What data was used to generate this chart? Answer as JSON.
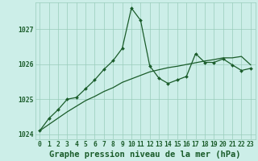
{
  "title": "Graphe pression niveau de la mer (hPa)",
  "background_color": "#cceee8",
  "grid_color": "#99ccbb",
  "line_color": "#1a5c2a",
  "x_values": [
    0,
    1,
    2,
    3,
    4,
    5,
    6,
    7,
    8,
    9,
    10,
    11,
    12,
    13,
    14,
    15,
    16,
    17,
    18,
    19,
    20,
    21,
    22,
    23
  ],
  "y_main": [
    1024.1,
    1024.45,
    1024.7,
    1025.0,
    1025.05,
    1025.3,
    1025.55,
    1025.85,
    1026.1,
    1026.45,
    1027.6,
    1027.25,
    1025.95,
    1025.6,
    1025.45,
    1025.55,
    1025.65,
    1026.3,
    1026.05,
    1026.05,
    1026.15,
    1025.98,
    1025.82,
    1025.88
  ],
  "y_trend": [
    1024.1,
    1024.28,
    1024.46,
    1024.64,
    1024.8,
    1024.96,
    1025.08,
    1025.22,
    1025.33,
    1025.48,
    1025.58,
    1025.68,
    1025.78,
    1025.84,
    1025.9,
    1025.94,
    1025.99,
    1026.04,
    1026.09,
    1026.13,
    1026.18,
    1026.18,
    1026.22,
    1025.98
  ],
  "ylim": [
    1023.85,
    1027.75
  ],
  "yticks": [
    1024,
    1025,
    1026,
    1027
  ],
  "title_fontsize": 7.5,
  "tick_fontsize": 5.8,
  "figwidth": 3.2,
  "figheight": 2.0,
  "dpi": 100
}
